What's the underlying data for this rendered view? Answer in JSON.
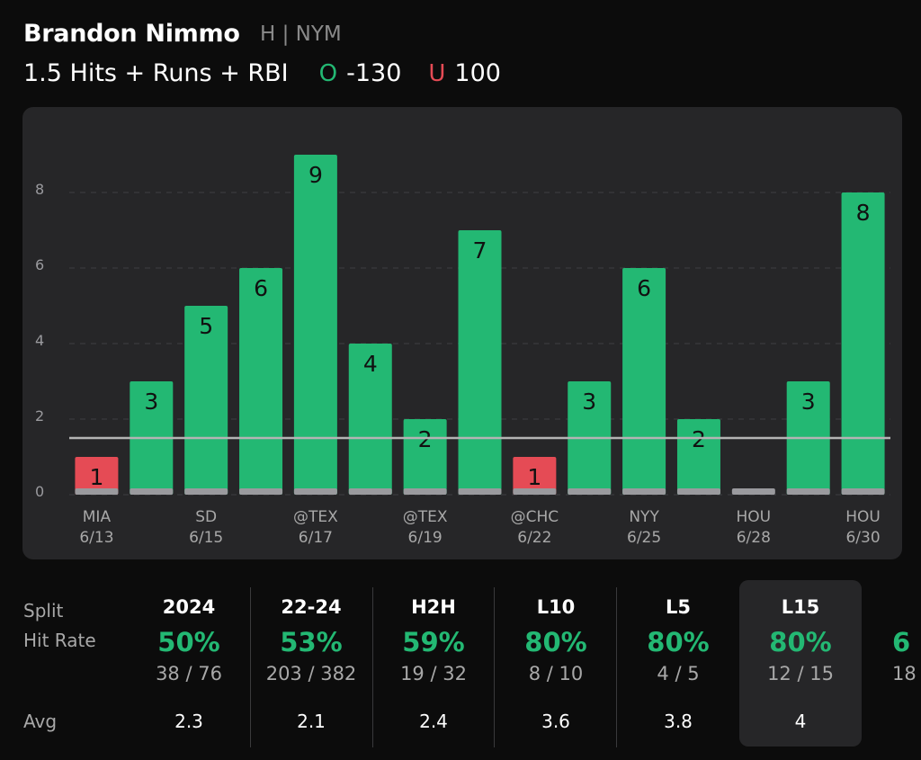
{
  "player": {
    "name": "Brandon Nimmo",
    "position_team": "H | NYM"
  },
  "prop": {
    "label": "1.5 Hits + Runs + RBI",
    "over": {
      "letter": "O",
      "odds": "-130",
      "color": "#23b873"
    },
    "under": {
      "letter": "U",
      "odds": "100",
      "color": "#e54b55"
    }
  },
  "chart_data": {
    "type": "bar",
    "title": "",
    "xlabel": "",
    "ylabel": "",
    "ylim": [
      0,
      9.2
    ],
    "yticks": [
      0,
      2,
      4,
      6,
      8
    ],
    "line_value": 1.5,
    "values": [
      1,
      3,
      5,
      6,
      9,
      4,
      2,
      7,
      1,
      3,
      6,
      2,
      0,
      3,
      8
    ],
    "shown_labels": [
      {
        "index": 0,
        "opponent": "MIA",
        "date": "6/13"
      },
      {
        "index": 2,
        "opponent": "SD",
        "date": "6/15"
      },
      {
        "index": 4,
        "opponent": "@TEX",
        "date": "6/17"
      },
      {
        "index": 6,
        "opponent": "@TEX",
        "date": "6/19"
      },
      {
        "index": 8,
        "opponent": "@CHC",
        "date": "6/22"
      },
      {
        "index": 10,
        "opponent": "NYY",
        "date": "6/25"
      },
      {
        "index": 12,
        "opponent": "HOU",
        "date": "6/28"
      },
      {
        "index": 14,
        "opponent": "HOU",
        "date": "6/30"
      }
    ],
    "colors": {
      "over": "#23b873",
      "under": "#e54b55",
      "base": "#9a9a9e",
      "line": "#b4b4b4"
    }
  },
  "stats": {
    "split_label": "Split",
    "hit_rate_label": "Hit Rate",
    "avg_label": "Avg",
    "columns": [
      {
        "name": "2024",
        "rate": "50%",
        "record": "38 / 76",
        "avg": "2.3"
      },
      {
        "name": "22-24",
        "rate": "53%",
        "record": "203 / 382",
        "avg": "2.1"
      },
      {
        "name": "H2H",
        "rate": "59%",
        "record": "19 / 32",
        "avg": "2.4"
      },
      {
        "name": "L10",
        "rate": "80%",
        "record": "8 / 10",
        "avg": "3.6"
      },
      {
        "name": "L5",
        "rate": "80%",
        "record": "4 / 5",
        "avg": "3.8"
      },
      {
        "name": "L15",
        "rate": "80%",
        "record": "12 / 15",
        "avg": "4",
        "selected": true
      }
    ],
    "partial": {
      "rate": "6",
      "record": "18"
    }
  }
}
